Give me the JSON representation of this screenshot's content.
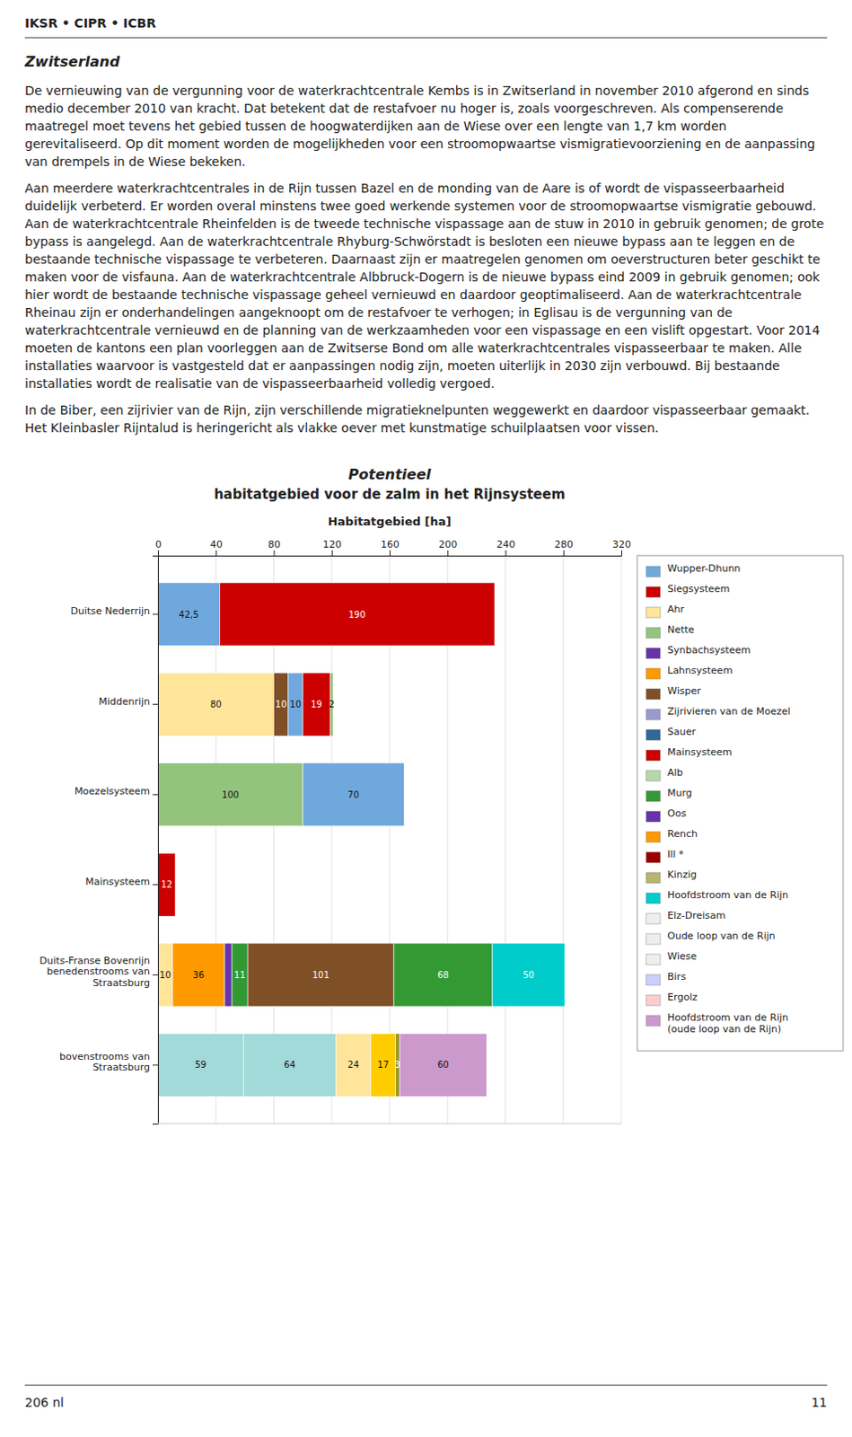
{
  "header": "IKSR • CIPR • ICBR",
  "section_title": "Zwitserland",
  "paragraphs": [
    "De vernieuwing van de vergunning voor de waterkrachtcentrale Kembs is in Zwitserland in november 2010 afgerond en sinds medio december 2010 van kracht. Dat betekent dat de restafvoer nu hoger is, zoals voorgeschreven. Als compenserende maatregel moet tevens het gebied tussen de hoogwaterdijken aan de Wiese over een lengte van 1,7 km worden gerevitaliseerd. Op dit moment worden de mogelijkheden voor een stroomopwaartse vismigratievoorziening en de aanpassing van drempels in de Wiese bekeken.",
    "Aan meerdere waterkrachtcentrales in de Rijn tussen Bazel en de monding van de Aare is of wordt de vispasseerbaarheid duidelijk verbeterd. Er worden overal minstens twee goed werkende systemen voor de stroomopwaartse vismigratie gebouwd.  Aan de waterkrachtcentrale Rheinfelden is de tweede technische vispassage aan de stuw in 2010 in gebruik genomen; de grote bypass is aangelegd. Aan de waterkrachtcentrale Rhyburg-Schwörstadt is besloten een nieuwe bypass aan te leggen en de bestaande technische vispassage te verbeteren. Daarnaast zijn er maatregelen genomen om oeverstructuren beter geschikt te maken voor de visfauna. Aan de waterkrachtcentrale Albbruck-Dogern is de nieuwe bypass eind 2009 in gebruik genomen; ook hier wordt de bestaande technische vispassage geheel vernieuwd en daardoor geoptimaliseerd. Aan de waterkrachtcentrale Rheinau zijn er onderhandelingen aangeknoopt om de restafvoer te verhogen; in Eglisau is de vergunning van de waterkrachtcentrale vernieuwd en de planning van de werkzaamheden voor een vispassage en een vislift opgestart. Voor 2014 moeten de kantons een plan voorleggen aan de Zwitserse Bond om alle waterkrachtcentrales vispasseerbaar te maken. Alle installaties waarvoor is vastgesteld dat er aanpassingen nodig zijn, moeten uiterlijk in 2030 zijn verbouwd. Bij bestaande installaties wordt de realisatie van de vispasseerbaarheid volledig vergoed.",
    "In de Biber, een zijrivier van de Rijn, zijn verschillende migratieknelpunten weggewerkt en daardoor vispasseerbaar gemaakt. Het Kleinbasler Rijntalud is heringericht als vlakke oever met kunstmatige schuilplaatsen voor vissen."
  ],
  "footer_left": "206 nl",
  "footer_right": "11",
  "chart_data": {
    "type": "bar",
    "orientation": "horizontal",
    "stacked": true,
    "data_labels": true,
    "grid": true,
    "title": "Potentieel",
    "subtitle": "habitatgebied voor de zalm in het Rijnsysteem",
    "xlabel": "Habitatgebied [ha]",
    "xlim": [
      0,
      320
    ],
    "xticks": [
      0,
      40,
      80,
      120,
      160,
      200,
      240,
      280,
      320
    ],
    "categories": [
      "Duitse Nederrijn",
      "Middenrijn",
      "Moezelsysteem",
      "Mainsysteem",
      "Duits-Franse Bovenrijn\nbenedenstrooms van\nStraatsburg",
      "bovenstrooms van\nStraatsburg"
    ],
    "series": [
      {
        "values": [
          42.5,
          80,
          100,
          12,
          10,
          59
        ],
        "value_labels": [
          "42,5",
          "80",
          "100",
          "12",
          "10",
          "59"
        ],
        "colors": [
          "#6fa8dc",
          "#ffe599",
          "#93c47d",
          "#cc0000",
          "#ffe599",
          "#a2d9d9"
        ]
      },
      {
        "values": [
          190,
          10,
          70,
          null,
          36,
          64
        ],
        "colors": [
          "#cc0000",
          "#7f4f26",
          "#6fa8dc",
          null,
          "#ff9900",
          "#a2d9d9"
        ]
      },
      {
        "values": [
          null,
          10,
          null,
          null,
          5,
          24
        ],
        "value_labels": [
          null,
          "10",
          null,
          null,
          null,
          "24"
        ],
        "colors": [
          null,
          "#6fa8dc",
          null,
          null,
          "#6633aa",
          "#ffe599"
        ]
      },
      {
        "values": [
          null,
          19,
          null,
          null,
          11,
          17
        ],
        "colors": [
          null,
          "#cc0000",
          null,
          null,
          "#339933",
          "#ffcc00"
        ]
      },
      {
        "values": [
          null,
          2,
          null,
          null,
          101,
          3
        ],
        "colors": [
          null,
          "#93c47d",
          null,
          null,
          "#7f4f26",
          "#999933"
        ]
      },
      {
        "values": [
          null,
          null,
          null,
          null,
          68,
          60
        ],
        "colors": [
          null,
          null,
          null,
          null,
          "#339933",
          "#cc99cc"
        ]
      },
      {
        "values": [
          null,
          null,
          null,
          null,
          50,
          null
        ],
        "colors": [
          null,
          null,
          null,
          null,
          "#00cccc",
          null
        ]
      }
    ],
    "legend_items": [
      {
        "name": "Wupper-Dhunn",
        "color": "#6fa8dc"
      },
      {
        "name": "Siegsysteem",
        "color": "#cc0000"
      },
      {
        "name": "Ahr",
        "color": "#ffe599"
      },
      {
        "name": "Nette",
        "color": "#93c47d"
      },
      {
        "name": "Synbachsysteem",
        "color": "#6633aa"
      },
      {
        "name": "Lahnsysteem",
        "color": "#ff9900"
      },
      {
        "name": "Wisper",
        "color": "#7f4f26"
      },
      {
        "name": "Zijrivieren van de Moezel",
        "color": "#9999cc"
      },
      {
        "name": "Sauer",
        "color": "#336699"
      },
      {
        "name": "Mainsysteem",
        "color": "#cc0000"
      },
      {
        "name": "Alb",
        "color": "#b6d7a8"
      },
      {
        "name": "Murg",
        "color": "#339933"
      },
      {
        "name": "Oos",
        "color": "#6633aa"
      },
      {
        "name": "Rench",
        "color": "#ff9900"
      },
      {
        "name": "Ill *",
        "color": "#990000"
      },
      {
        "name": "Kinzig",
        "color": "#b5b56e"
      },
      {
        "name": "Hoofdstroom van de Rijn",
        "color": "#00cccc"
      },
      {
        "name": "Elz-Dreisam",
        "color": "#eeeeee"
      },
      {
        "name": "Oude loop van de Rijn",
        "color": "#eeeeee"
      },
      {
        "name": "Wiese",
        "color": "#eeeeee"
      },
      {
        "name": "Birs",
        "color": "#ccccff"
      },
      {
        "name": "Ergolz",
        "color": "#ffcccc"
      },
      {
        "name": "Hoofdstroom van de Rijn\n(oude loop van de Rijn)",
        "color": "#cc99cc"
      }
    ]
  }
}
